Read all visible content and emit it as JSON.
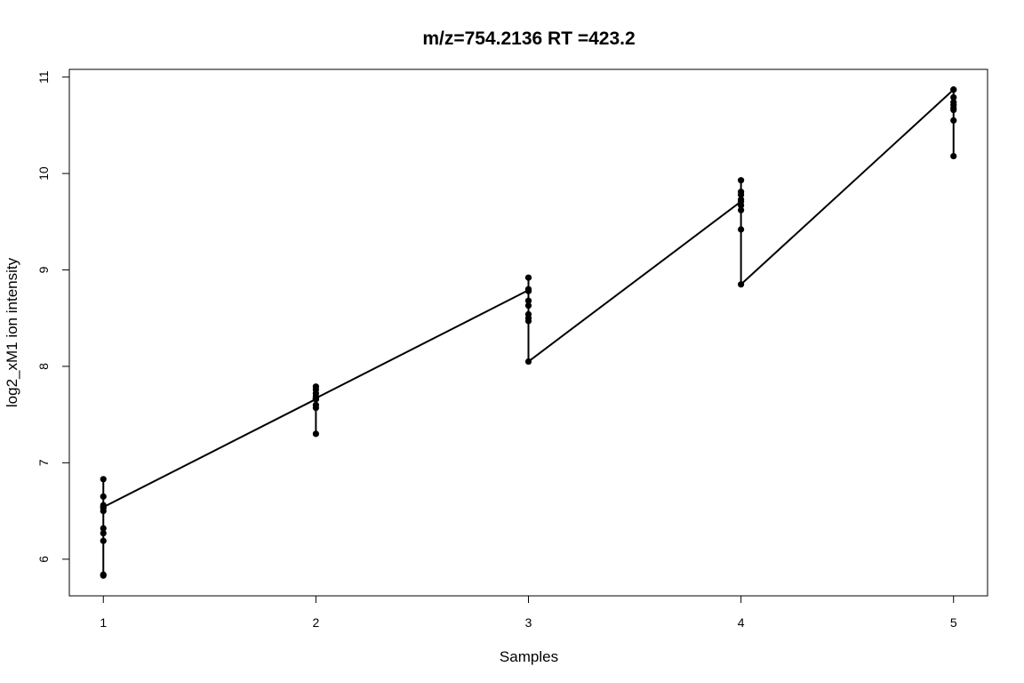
{
  "chart_data": {
    "type": "line",
    "title": "m/z=754.2136 RT =423.2",
    "xlabel": "Samples",
    "ylabel": "log2_xM1 ion intensity",
    "xlim": [
      0.84,
      5.16
    ],
    "ylim": [
      5.62,
      11.08
    ],
    "xticks": [
      1,
      2,
      3,
      4,
      5
    ],
    "yticks": [
      6,
      7,
      8,
      9,
      10,
      11
    ],
    "grid": false,
    "legend": "none",
    "series": [
      {
        "points": [
          {
            "x": 1,
            "y": 6.83
          },
          {
            "x": 1,
            "y": 6.65
          },
          {
            "x": 1,
            "y": 6.56
          },
          {
            "x": 1,
            "y": 6.53
          },
          {
            "x": 1,
            "y": 6.5
          },
          {
            "x": 1,
            "y": 6.32
          },
          {
            "x": 1,
            "y": 6.27
          },
          {
            "x": 1,
            "y": 6.19
          },
          {
            "x": 1,
            "y": 5.84
          },
          {
            "x": 1,
            "y": 5.83
          },
          {
            "x": 1,
            "y": 6.54
          },
          {
            "x": 2,
            "y": 7.66
          },
          {
            "x": 2,
            "y": 7.79
          },
          {
            "x": 2,
            "y": 7.76
          },
          {
            "x": 2,
            "y": 7.72
          },
          {
            "x": 2,
            "y": 7.69
          },
          {
            "x": 2,
            "y": 7.66
          },
          {
            "x": 2,
            "y": 7.6
          },
          {
            "x": 2,
            "y": 7.57
          },
          {
            "x": 2,
            "y": 7.3
          },
          {
            "x": 2,
            "y": 7.67
          },
          {
            "x": 3,
            "y": 8.79
          },
          {
            "x": 3,
            "y": 8.92
          },
          {
            "x": 3,
            "y": 8.8
          },
          {
            "x": 3,
            "y": 8.78
          },
          {
            "x": 3,
            "y": 8.68
          },
          {
            "x": 3,
            "y": 8.63
          },
          {
            "x": 3,
            "y": 8.54
          },
          {
            "x": 3,
            "y": 8.5
          },
          {
            "x": 3,
            "y": 8.47
          },
          {
            "x": 3,
            "y": 8.05
          },
          {
            "x": 4,
            "y": 9.71
          },
          {
            "x": 4,
            "y": 9.93
          },
          {
            "x": 4,
            "y": 9.81
          },
          {
            "x": 4,
            "y": 9.78
          },
          {
            "x": 4,
            "y": 9.73
          },
          {
            "x": 4,
            "y": 9.67
          },
          {
            "x": 4,
            "y": 9.62
          },
          {
            "x": 4,
            "y": 9.42
          },
          {
            "x": 4,
            "y": 8.85
          },
          {
            "x": 5,
            "y": 10.87
          },
          {
            "x": 5,
            "y": 10.87
          },
          {
            "x": 5,
            "y": 10.79
          },
          {
            "x": 5,
            "y": 10.74
          },
          {
            "x": 5,
            "y": 10.71
          },
          {
            "x": 5,
            "y": 10.68
          },
          {
            "x": 5,
            "y": 10.66
          },
          {
            "x": 5,
            "y": 10.55
          },
          {
            "x": 5,
            "y": 10.18
          }
        ]
      }
    ],
    "colors": {
      "line": "#000000",
      "points": "#000000",
      "frame": "#000000",
      "background": "#ffffff"
    }
  }
}
